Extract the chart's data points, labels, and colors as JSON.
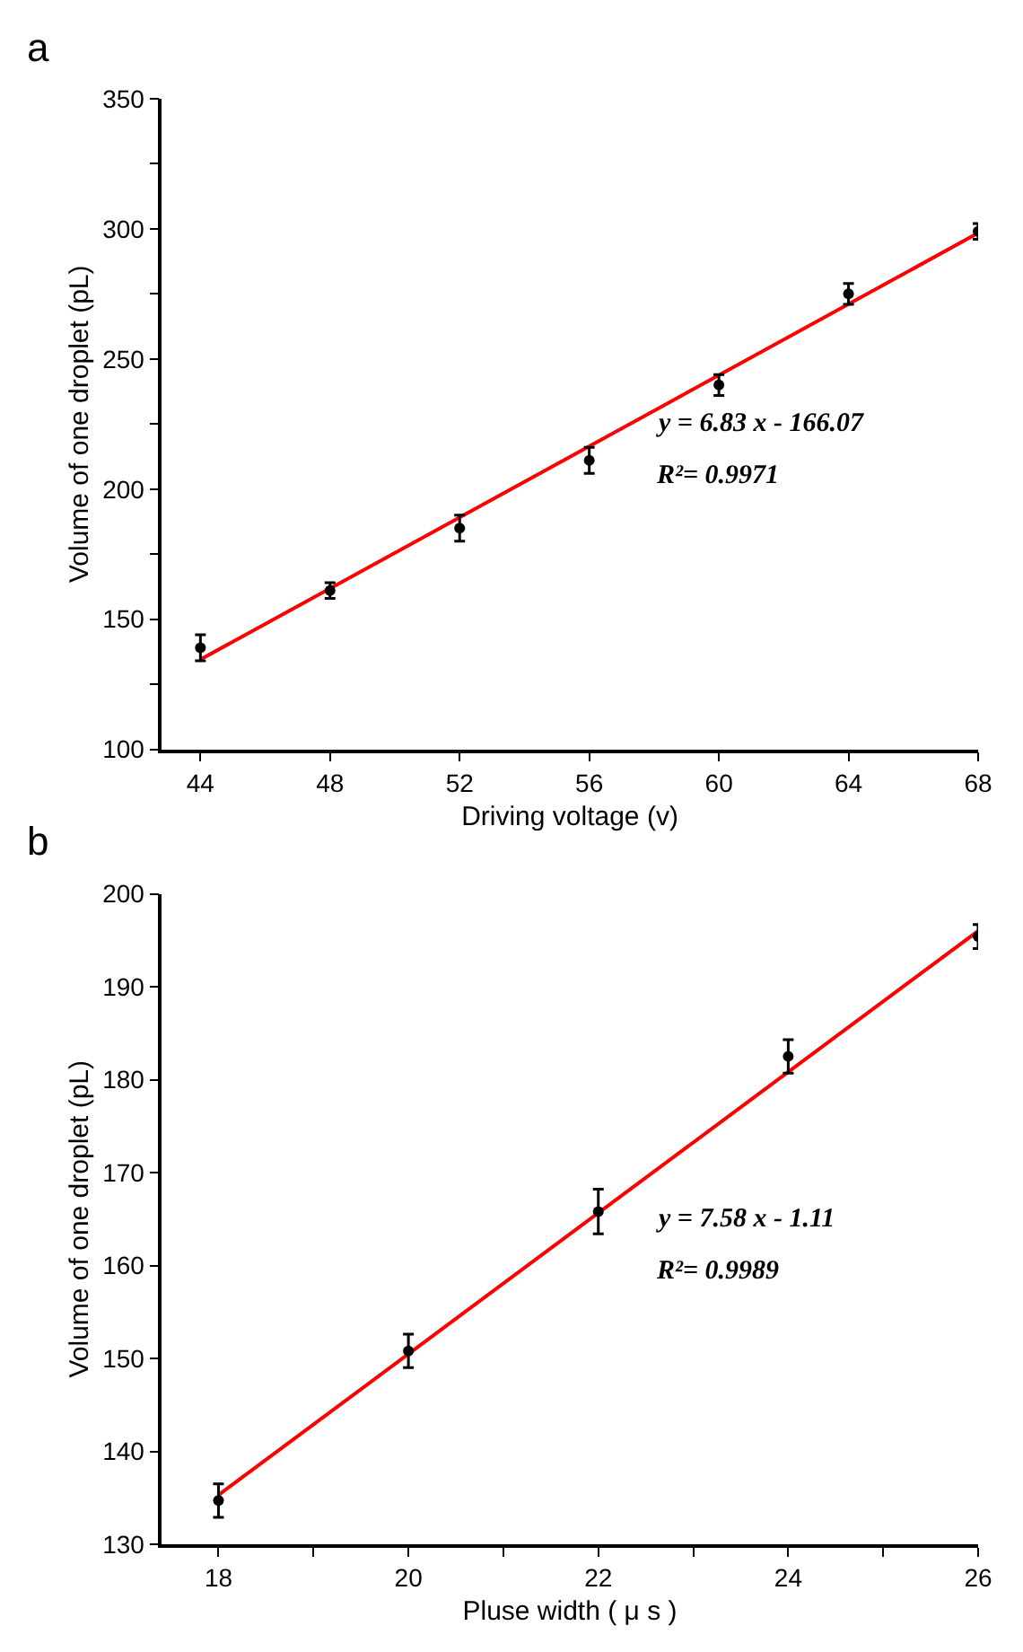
{
  "chart_data": [
    {
      "type": "scatter",
      "title": "a",
      "xlabel": "Driving voltage (v)",
      "ylabel": "Volume of one droplet (pL)",
      "x": [
        44,
        48,
        52,
        56,
        60,
        64,
        68
      ],
      "series": [
        {
          "color": "#000000",
          "values": [
            139,
            161,
            185,
            211,
            240,
            275,
            299
          ],
          "errors": [
            5,
            3,
            5,
            5,
            4,
            4,
            3
          ]
        },
        {
          "type": "line",
          "color": "#ff0000",
          "x": [
            44,
            68
          ],
          "values": [
            134.5,
            298.4
          ],
          "line_style": "solid"
        }
      ],
      "xlim": [
        42.8,
        68
      ],
      "xticks": [
        44,
        48,
        52,
        56,
        60,
        64,
        68
      ],
      "ylim": [
        100,
        350
      ],
      "yticks": [
        100,
        {
          "value": 125,
          "label": null
        },
        150,
        {
          "value": 175,
          "label": null
        },
        200,
        {
          "value": 225,
          "label": null
        },
        250,
        {
          "value": 275,
          "label": null
        },
        300,
        {
          "value": 325,
          "label": null
        },
        350
      ],
      "annotations": [
        "y = 6.83 x - 166.07",
        "R²= 0.9971"
      ]
    },
    {
      "type": "scatter",
      "title": "b",
      "xlabel": "Pluse width ( μ s )",
      "ylabel": "Volume of one droplet (pL)",
      "x": [
        18,
        20,
        22,
        24,
        26
      ],
      "series": [
        {
          "color": "#000000",
          "values": [
            134.7,
            150.8,
            165.8,
            182.5,
            195.4
          ],
          "errors": [
            1.8,
            1.8,
            2.4,
            1.8,
            1.3
          ]
        },
        {
          "type": "line",
          "color": "#ff0000",
          "x": [
            18,
            26
          ],
          "values": [
            135.3,
            196.0
          ],
          "line_style": "solid"
        }
      ],
      "xlim": [
        17.4,
        26
      ],
      "xticks": [
        18,
        {
          "value": 19,
          "label": null
        },
        20,
        {
          "value": 21,
          "label": null
        },
        22,
        {
          "value": 23,
          "label": null
        },
        24,
        {
          "value": 25,
          "label": null
        },
        26
      ],
      "ylim": [
        130,
        200
      ],
      "yticks": [
        130,
        140,
        150,
        160,
        170,
        180,
        190,
        200
      ],
      "annotations": [
        "y = 7.58 x - 1.11",
        "R²= 0.9989"
      ]
    }
  ]
}
